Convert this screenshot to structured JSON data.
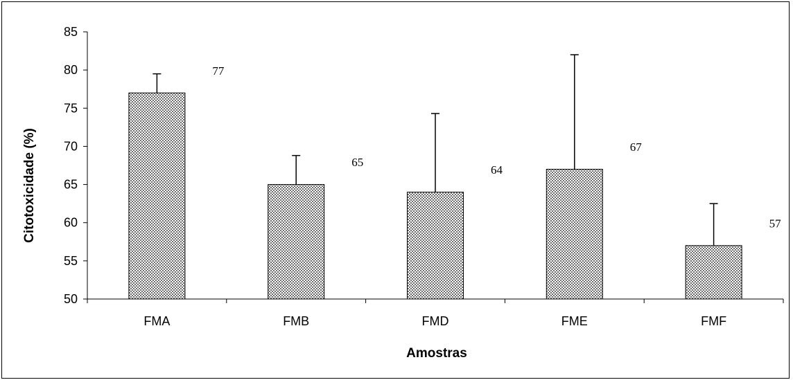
{
  "chart_data": {
    "type": "bar",
    "xlabel": "Amostras",
    "ylabel": "Citotoxicidade (%)",
    "ylim": [
      50,
      85
    ],
    "yticks": [
      50,
      55,
      60,
      65,
      70,
      75,
      80,
      85
    ],
    "grid": false,
    "legend": "none",
    "bar_pattern": "crosshatch",
    "colors": {
      "bar_fill": "#a8a8a8",
      "bar_stroke": "#000000",
      "axis": "#000000"
    },
    "categories": [
      "FMA",
      "FMB",
      "FMD",
      "FME",
      "FMF"
    ],
    "values": [
      77,
      65,
      64,
      67,
      57
    ],
    "error_upper": [
      2.5,
      3.8,
      10.3,
      15,
      5.5
    ],
    "data_labels": [
      "77",
      "65",
      "64",
      "67",
      "57"
    ]
  }
}
